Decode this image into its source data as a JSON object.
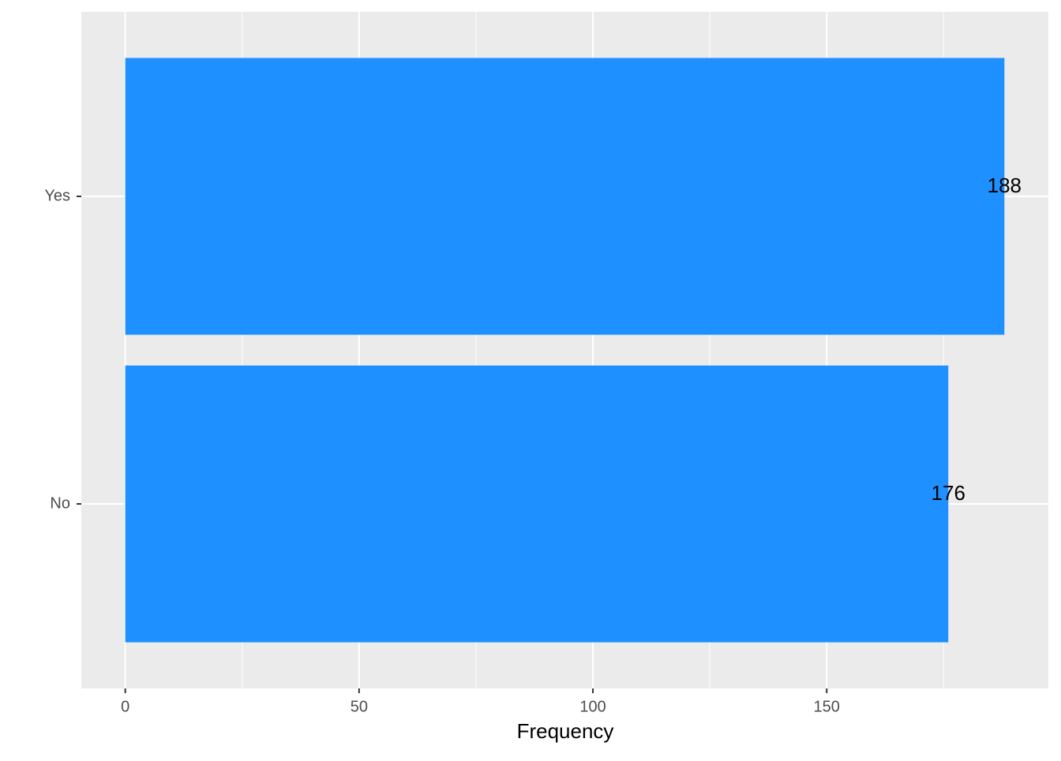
{
  "chart_data": {
    "type": "bar",
    "orientation": "horizontal",
    "x_label": "Frequency",
    "categories": [
      "No",
      "Yes"
    ],
    "values": [
      176,
      188
    ],
    "color": "#1e90ff",
    "xlim": [
      -9.4,
      197.4
    ],
    "xticks": [
      0,
      50,
      100,
      150
    ],
    "minor_xticks": [
      25,
      75,
      125,
      175
    ],
    "grid": true,
    "show_value_labels": true
  }
}
